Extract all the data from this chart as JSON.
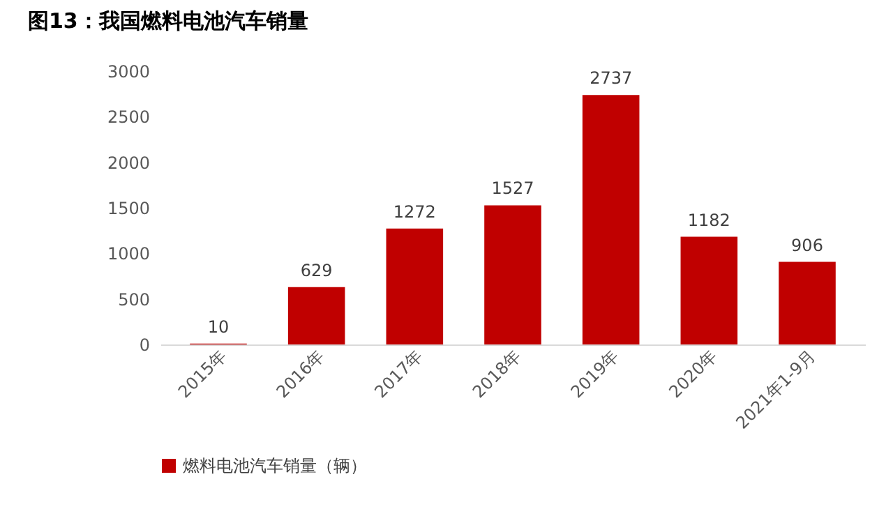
{
  "chart_data": {
    "type": "bar",
    "title": "图13：我国燃料电池汽车销量",
    "categories": [
      "2015年",
      "2016年",
      "2017年",
      "2018年",
      "2019年",
      "2020年",
      "2021年1-9月"
    ],
    "series": [
      {
        "name": "燃料电池汽车销量（辆）",
        "color": "#c00000",
        "values": [
          10,
          629,
          1272,
          1527,
          2737,
          1182,
          906
        ]
      }
    ],
    "ylim": [
      0,
      3000
    ],
    "yticks": [
      0,
      500,
      1000,
      1500,
      2000,
      2500,
      3000
    ],
    "grid": false,
    "legend": "bottom",
    "data_labels": true
  }
}
